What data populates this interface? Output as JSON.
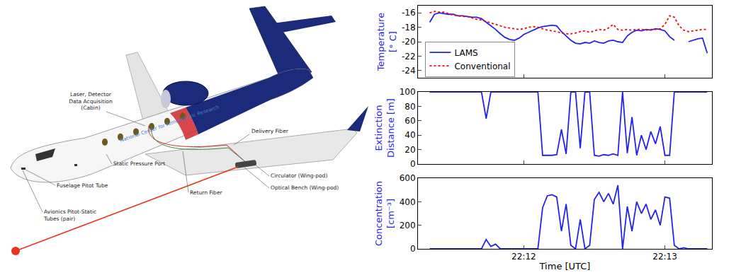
{
  "diagram": {
    "labels": [
      {
        "lines": [
          "Laser, Detector",
          "Data Acquisition",
          "(Cabin)"
        ]
      },
      {
        "lines": [
          "National Center for Atmospheric Research"
        ]
      },
      {
        "lines": [
          "Delivery Fiber"
        ]
      },
      {
        "lines": [
          "Static Pressure Port"
        ]
      },
      {
        "lines": [
          "Return Fiber"
        ]
      },
      {
        "lines": [
          "Circulator (Wing-pod)"
        ]
      },
      {
        "lines": [
          "Optical Bench (Wing-pod)"
        ]
      },
      {
        "lines": [
          "Fuselage Pitot Tube"
        ]
      },
      {
        "lines": [
          "Avionics Pitot-Static",
          "Tubes (pair)"
        ]
      }
    ]
  },
  "chart_data": [
    {
      "type": "line",
      "ylabel": [
        "Temperature",
        "[° C]"
      ],
      "legend": "upper left",
      "grid": false,
      "tick_labels": "y",
      "x": [
        79880,
        79882,
        79884,
        79886,
        79888,
        79890,
        79892,
        79894,
        79896,
        79898,
        79900,
        79902,
        79904,
        79906,
        79908,
        79910,
        79912,
        79914,
        79916,
        79918,
        79920,
        79922,
        79924,
        79926,
        79928,
        79930,
        79932,
        79934,
        79936,
        79938,
        79940,
        79942,
        79944,
        79946,
        79948,
        79950,
        79952,
        79954,
        79956,
        79958,
        79960,
        79962,
        79964,
        79966,
        79968,
        79970,
        79972,
        79974,
        79976,
        79978,
        79980,
        79982,
        79984,
        79986,
        79988,
        79990,
        79992,
        79994,
        79996,
        79998
      ],
      "xlim": [
        79875,
        80000
      ],
      "xticks": [
        {
          "value": 79920,
          "label": "22:12"
        },
        {
          "value": 79980,
          "label": "22:13"
        }
      ],
      "ylim": [
        -25,
        -15
      ],
      "yticks": [
        -16,
        -18,
        -20,
        -22,
        -24
      ],
      "series": [
        {
          "name": "LAMS",
          "color": "#2424e8",
          "line_style": "solid",
          "values": [
            -17.3,
            -16.2,
            -16.0,
            -16.1,
            -16.2,
            -16.2,
            -16.4,
            -16.4,
            -16.5,
            -16.6,
            -16.6,
            -16.8,
            -17.3,
            -17.8,
            -18.3,
            -18.9,
            -19.4,
            -19.7,
            -19.8,
            -19.5,
            -19.0,
            -18.7,
            -18.4,
            -18.1,
            -17.9,
            -17.8,
            -17.7,
            -17.8,
            -18.6,
            -19.2,
            -19.8,
            -20.2,
            -20.3,
            -20.1,
            -20.2,
            -19.9,
            -20.1,
            -20.2,
            -19.9,
            -19.8,
            -20.0,
            -20.1,
            -19.2,
            -18.7,
            -18.4,
            -18.5,
            -18.3,
            -18.4,
            -18.2,
            -18.3,
            -18.5,
            -19.3,
            -19.8,
            null,
            null,
            -20.0,
            -19.8,
            -19.6,
            -19.5,
            -21.6
          ]
        },
        {
          "name": "Conventional",
          "color": "#ff0000",
          "line_style": "dotted",
          "values": [
            -16.0,
            -15.8,
            -15.9,
            -15.9,
            -16.1,
            -16.3,
            -16.4,
            -16.5,
            -16.5,
            -16.7,
            -16.9,
            -17.0,
            -17.2,
            -17.4,
            -17.6,
            -17.8,
            -18.0,
            -18.1,
            -18.2,
            -18.3,
            -18.2,
            -18.0,
            -17.9,
            -18.0,
            -18.2,
            -18.4,
            -18.5,
            -18.6,
            -18.8,
            -18.9,
            -18.9,
            -18.8,
            -18.6,
            -18.5,
            -18.7,
            -18.5,
            -18.3,
            -18.4,
            -18.1,
            -17.6,
            -18.3,
            -18.4,
            -18.3,
            -18.4,
            -18.3,
            -18.3,
            -18.4,
            -18.3,
            -18.3,
            -18.2,
            -17.6,
            -16.4,
            -16.6,
            -17.8,
            -18.4,
            -18.6,
            -18.5,
            -18.4,
            -18.3,
            -18.3
          ]
        }
      ]
    },
    {
      "type": "line",
      "ylabel": [
        "Extinction",
        "Distance [m]"
      ],
      "grid": false,
      "tick_labels": "y",
      "x": [
        79880,
        79882,
        79884,
        79886,
        79888,
        79890,
        79892,
        79894,
        79896,
        79898,
        79900,
        79902,
        79904,
        79906,
        79908,
        79910,
        79912,
        79914,
        79916,
        79918,
        79920,
        79922,
        79924,
        79926,
        79928,
        79930,
        79932,
        79934,
        79936,
        79938,
        79940,
        79942,
        79944,
        79946,
        79948,
        79950,
        79952,
        79954,
        79956,
        79958,
        79960,
        79962,
        79964,
        79966,
        79968,
        79970,
        79972,
        79974,
        79976,
        79978,
        79980,
        79982,
        79984,
        79986,
        79988,
        79990,
        79992,
        79994,
        79996,
        79998
      ],
      "xlim": [
        79875,
        80000
      ],
      "xticks": [
        {
          "value": 79920,
          "label": "22:12"
        },
        {
          "value": 79980,
          "label": "22:13"
        }
      ],
      "ylim": [
        0,
        100
      ],
      "yticks": [
        0,
        20,
        40,
        60,
        80,
        100
      ],
      "series": [
        {
          "color": "#2424e8",
          "line_style": "solid",
          "values": [
            100,
            100,
            100,
            100,
            100,
            100,
            100,
            100,
            100,
            100,
            100,
            100,
            63,
            100,
            100,
            100,
            100,
            100,
            100,
            100,
            100,
            100,
            100,
            100,
            12,
            12,
            12,
            13,
            48,
            14,
            100,
            100,
            22,
            100,
            100,
            12,
            11,
            13,
            12,
            14,
            12,
            100,
            15,
            65,
            12,
            40,
            20,
            45,
            28,
            52,
            12,
            12,
            100,
            100,
            100,
            100,
            100,
            100,
            100,
            100
          ]
        }
      ]
    },
    {
      "type": "line",
      "ylabel": [
        "Concentration",
        "[cm⁻³]"
      ],
      "xlabel": "Time [UTC]",
      "grid": false,
      "x": [
        79880,
        79882,
        79884,
        79886,
        79888,
        79890,
        79892,
        79894,
        79896,
        79898,
        79900,
        79902,
        79904,
        79906,
        79908,
        79910,
        79912,
        79914,
        79916,
        79918,
        79920,
        79922,
        79924,
        79926,
        79928,
        79930,
        79932,
        79934,
        79936,
        79938,
        79940,
        79942,
        79944,
        79946,
        79948,
        79950,
        79952,
        79954,
        79956,
        79958,
        79960,
        79962,
        79964,
        79966,
        79968,
        79970,
        79972,
        79974,
        79976,
        79978,
        79980,
        79982,
        79984,
        79986,
        79988,
        79990,
        79992,
        79994,
        79996,
        79998
      ],
      "xlim": [
        79875,
        80000
      ],
      "xticks": [
        {
          "value": 79920,
          "label": "22:12"
        },
        {
          "value": 79980,
          "label": "22:13"
        }
      ],
      "ylim": [
        0,
        600
      ],
      "yticks": [
        0,
        200,
        400,
        600
      ],
      "series": [
        {
          "color": "#2424e8",
          "line_style": "solid",
          "values": [
            0,
            0,
            0,
            0,
            0,
            0,
            0,
            0,
            0,
            0,
            0,
            0,
            80,
            20,
            40,
            0,
            0,
            0,
            0,
            0,
            0,
            0,
            0,
            0,
            350,
            450,
            460,
            440,
            150,
            380,
            30,
            0,
            250,
            0,
            30,
            420,
            480,
            400,
            470,
            380,
            540,
            0,
            360,
            150,
            400,
            300,
            380,
            250,
            330,
            200,
            440,
            430,
            30,
            0,
            10,
            0,
            0,
            0,
            0,
            0
          ]
        }
      ]
    }
  ]
}
